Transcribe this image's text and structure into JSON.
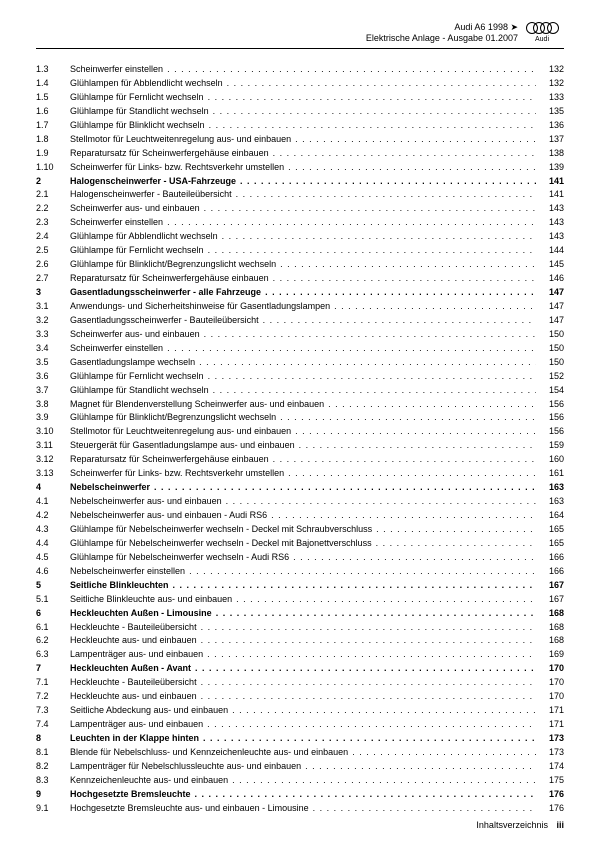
{
  "header": {
    "line1": "Audi A6 1998 ➤",
    "line2": "Elektrische Anlage - Ausgabe 01.2007",
    "brand": "Audi"
  },
  "footer": {
    "label": "Inhaltsverzeichnis",
    "page": "iii"
  },
  "toc": [
    {
      "num": "1.3",
      "title": "Scheinwerfer einstellen",
      "page": "132",
      "bold": false
    },
    {
      "num": "1.4",
      "title": "Glühlampen für Abblendlicht wechseln",
      "page": "132",
      "bold": false
    },
    {
      "num": "1.5",
      "title": "Glühlampe für Fernlicht wechseln",
      "page": "133",
      "bold": false
    },
    {
      "num": "1.6",
      "title": "Glühlampe für Standlicht wechseln",
      "page": "135",
      "bold": false
    },
    {
      "num": "1.7",
      "title": "Glühlampe für Blinklicht wechseln",
      "page": "136",
      "bold": false
    },
    {
      "num": "1.8",
      "title": "Stellmotor für Leuchtweitenregelung aus- und einbauen",
      "page": "137",
      "bold": false
    },
    {
      "num": "1.9",
      "title": "Reparatursatz für Scheinwerfergehäuse einbauen",
      "page": "138",
      "bold": false
    },
    {
      "num": "1.10",
      "title": "Scheinwerfer für Links- bzw. Rechtsverkehr umstellen",
      "page": "139",
      "bold": false
    },
    {
      "num": "2",
      "title": "Halogenscheinwerfer - USA-Fahrzeuge",
      "page": "141",
      "bold": true
    },
    {
      "num": "2.1",
      "title": "Halogenscheinwerfer - Bauteileübersicht",
      "page": "141",
      "bold": false
    },
    {
      "num": "2.2",
      "title": "Scheinwerfer aus- und einbauen",
      "page": "143",
      "bold": false
    },
    {
      "num": "2.3",
      "title": "Scheinwerfer einstellen",
      "page": "143",
      "bold": false
    },
    {
      "num": "2.4",
      "title": "Glühlampe für Abblendlicht wechseln",
      "page": "143",
      "bold": false
    },
    {
      "num": "2.5",
      "title": "Glühlampe für Fernlicht wechseln",
      "page": "144",
      "bold": false
    },
    {
      "num": "2.6",
      "title": "Glühlampe für Blinklicht/Begrenzungslicht wechseln",
      "page": "145",
      "bold": false
    },
    {
      "num": "2.7",
      "title": "Reparatursatz für Scheinwerfergehäuse einbauen",
      "page": "146",
      "bold": false
    },
    {
      "num": "3",
      "title": "Gasentladungsscheinwerfer - alle Fahrzeuge",
      "page": "147",
      "bold": true
    },
    {
      "num": "3.1",
      "title": "Anwendungs- und Sicherheitshinweise für Gasentladungslampen",
      "page": "147",
      "bold": false
    },
    {
      "num": "3.2",
      "title": "Gasentladungsscheinwerfer - Bauteileübersicht",
      "page": "147",
      "bold": false
    },
    {
      "num": "3.3",
      "title": "Scheinwerfer aus- und einbauen",
      "page": "150",
      "bold": false
    },
    {
      "num": "3.4",
      "title": "Scheinwerfer einstellen",
      "page": "150",
      "bold": false
    },
    {
      "num": "3.5",
      "title": "Gasentladungslampe wechseln",
      "page": "150",
      "bold": false
    },
    {
      "num": "3.6",
      "title": "Glühlampe für Fernlicht wechseln",
      "page": "152",
      "bold": false
    },
    {
      "num": "3.7",
      "title": "Glühlampe für Standlicht wechseln",
      "page": "154",
      "bold": false
    },
    {
      "num": "3.8",
      "title": "Magnet für Blendenverstellung Scheinwerfer aus- und einbauen",
      "page": "156",
      "bold": false
    },
    {
      "num": "3.9",
      "title": "Glühlampe für Blinklicht/Begrenzungslicht wechseln",
      "page": "156",
      "bold": false
    },
    {
      "num": "3.10",
      "title": "Stellmotor für Leuchtweitenregelung aus- und einbauen",
      "page": "156",
      "bold": false
    },
    {
      "num": "3.11",
      "title": "Steuergerät für Gasentladungslampe aus- und einbauen",
      "page": "159",
      "bold": false
    },
    {
      "num": "3.12",
      "title": "Reparatursatz für Scheinwerfergehäuse einbauen",
      "page": "160",
      "bold": false
    },
    {
      "num": "3.13",
      "title": "Scheinwerfer für Links- bzw. Rechtsverkehr umstellen",
      "page": "161",
      "bold": false
    },
    {
      "num": "4",
      "title": "Nebelscheinwerfer",
      "page": "163",
      "bold": true
    },
    {
      "num": "4.1",
      "title": "Nebelscheinwerfer aus- und einbauen",
      "page": "163",
      "bold": false
    },
    {
      "num": "4.2",
      "title": "Nebelscheinwerfer aus- und einbauen - Audi RS6",
      "page": "164",
      "bold": false
    },
    {
      "num": "4.3",
      "title": "Glühlampe für Nebelscheinwerfer wechseln - Deckel mit Schraubverschluss",
      "page": "165",
      "bold": false
    },
    {
      "num": "4.4",
      "title": "Glühlampe für Nebelscheinwerfer wechseln - Deckel mit Bajonettverschluss",
      "page": "165",
      "bold": false
    },
    {
      "num": "4.5",
      "title": "Glühlampe für Nebelscheinwerfer wechseln - Audi RS6",
      "page": "166",
      "bold": false
    },
    {
      "num": "4.6",
      "title": "Nebelscheinwerfer einstellen",
      "page": "166",
      "bold": false
    },
    {
      "num": "5",
      "title": "Seitliche Blinkleuchten",
      "page": "167",
      "bold": true
    },
    {
      "num": "5.1",
      "title": "Seitliche Blinkleuchte aus- und einbauen",
      "page": "167",
      "bold": false
    },
    {
      "num": "6",
      "title": "Heckleuchten Außen - Limousine",
      "page": "168",
      "bold": true
    },
    {
      "num": "6.1",
      "title": "Heckleuchte - Bauteileübersicht",
      "page": "168",
      "bold": false
    },
    {
      "num": "6.2",
      "title": "Heckleuchte aus- und einbauen",
      "page": "168",
      "bold": false
    },
    {
      "num": "6.3",
      "title": "Lampenträger aus- und einbauen",
      "page": "169",
      "bold": false
    },
    {
      "num": "7",
      "title": "Heckleuchten Außen - Avant",
      "page": "170",
      "bold": true
    },
    {
      "num": "7.1",
      "title": "Heckleuchte - Bauteileübersicht",
      "page": "170",
      "bold": false
    },
    {
      "num": "7.2",
      "title": "Heckleuchte aus- und einbauen",
      "page": "170",
      "bold": false
    },
    {
      "num": "7.3",
      "title": "Seitliche Abdeckung aus- und einbauen",
      "page": "171",
      "bold": false
    },
    {
      "num": "7.4",
      "title": "Lampenträger aus- und einbauen",
      "page": "171",
      "bold": false
    },
    {
      "num": "8",
      "title": "Leuchten in der Klappe hinten",
      "page": "173",
      "bold": true
    },
    {
      "num": "8.1",
      "title": "Blende für Nebelschluss- und Kennzeichenleuchte aus- und einbauen",
      "page": "173",
      "bold": false
    },
    {
      "num": "8.2",
      "title": "Lampenträger für Nebelschlussleuchte aus- und einbauen",
      "page": "174",
      "bold": false
    },
    {
      "num": "8.3",
      "title": "Kennzeichenleuchte aus- und einbauen",
      "page": "175",
      "bold": false
    },
    {
      "num": "9",
      "title": "Hochgesetzte Bremsleuchte",
      "page": "176",
      "bold": true
    },
    {
      "num": "9.1",
      "title": "Hochgesetzte Bremsleuchte aus- und einbauen - Limousine",
      "page": "176",
      "bold": false
    }
  ]
}
